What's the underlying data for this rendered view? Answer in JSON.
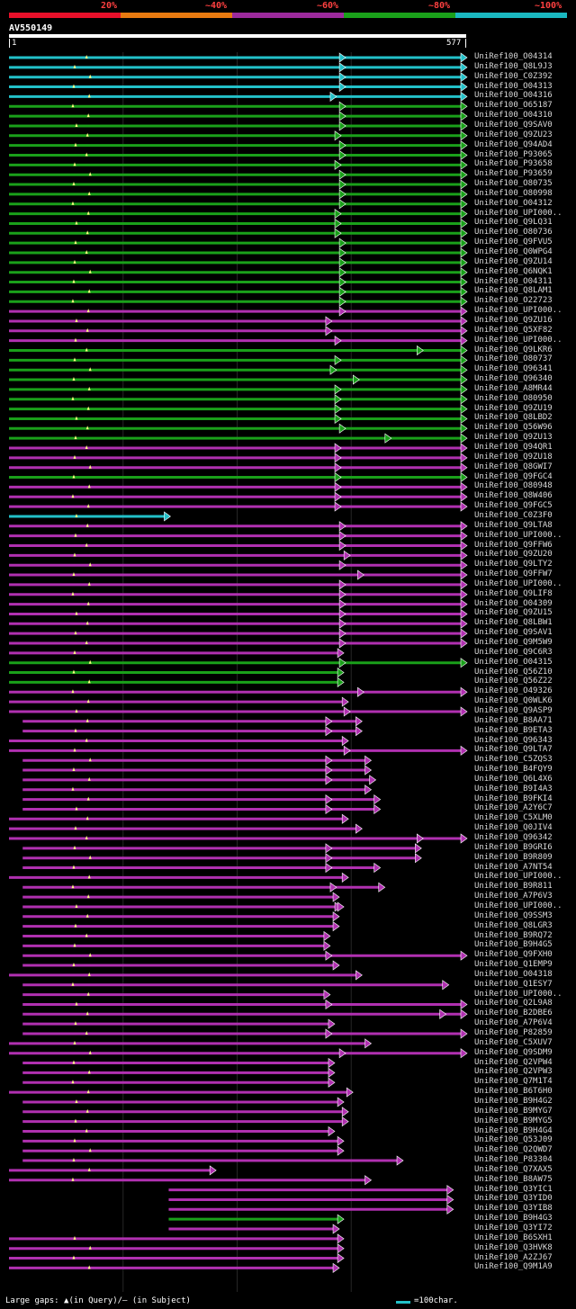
{
  "header": {
    "percent_labels": [
      "20%",
      "~40%",
      "~60%",
      "~80%",
      "~100%"
    ],
    "band_colors": [
      "#e8102a",
      "#e87a10",
      "#9c2a9c",
      "#1aa01a",
      "#1ab8c0"
    ]
  },
  "query": {
    "name": "AV550149",
    "start_label": "1",
    "end_label": "577"
  },
  "colors": {
    "cyan": "#22c0c8",
    "green": "#1aa01a",
    "magenta": "#b030b0",
    "gap": "#ffff80"
  },
  "hits": [
    {
      "label": "UniRef100_O04314",
      "c": "cyan",
      "s": 0.0,
      "e": 1.0,
      "m": 0.73
    },
    {
      "label": "UniRef100_Q8L9J3",
      "c": "cyan",
      "s": 0.0,
      "e": 1.0,
      "m": 0.73
    },
    {
      "label": "UniRef100_C0Z392",
      "c": "cyan",
      "s": 0.0,
      "e": 1.0,
      "m": 0.73
    },
    {
      "label": "UniRef100_O04313",
      "c": "cyan",
      "s": 0.0,
      "e": 1.0,
      "m": 0.73
    },
    {
      "label": "UniRef100_O04316",
      "c": "cyan",
      "s": 0.0,
      "e": 1.0,
      "m": 0.71
    },
    {
      "label": "UniRef100_O65187",
      "c": "green",
      "s": 0.0,
      "e": 1.0,
      "m": 0.73
    },
    {
      "label": "UniRef100_O04310",
      "c": "green",
      "s": 0.0,
      "e": 1.0,
      "m": 0.73
    },
    {
      "label": "UniRef100_Q9SAV0",
      "c": "green",
      "s": 0.0,
      "e": 1.0,
      "m": 0.73
    },
    {
      "label": "UniRef100_Q9ZU23",
      "c": "green",
      "s": 0.0,
      "e": 1.0,
      "m": 0.72
    },
    {
      "label": "UniRef100_Q94AD4",
      "c": "green",
      "s": 0.0,
      "e": 1.0,
      "m": 0.73
    },
    {
      "label": "UniRef100_P93065",
      "c": "green",
      "s": 0.0,
      "e": 1.0,
      "m": 0.73
    },
    {
      "label": "UniRef100_P93658",
      "c": "green",
      "s": 0.0,
      "e": 1.0,
      "m": 0.72
    },
    {
      "label": "UniRef100_P93659",
      "c": "green",
      "s": 0.0,
      "e": 1.0,
      "m": 0.73
    },
    {
      "label": "UniRef100_O80735",
      "c": "green",
      "s": 0.0,
      "e": 1.0,
      "m": 0.73
    },
    {
      "label": "UniRef100_O80998",
      "c": "green",
      "s": 0.0,
      "e": 1.0,
      "m": 0.73
    },
    {
      "label": "UniRef100_O04312",
      "c": "green",
      "s": 0.0,
      "e": 1.0,
      "m": 0.73
    },
    {
      "label": "UniRef100_UPI000..",
      "c": "green",
      "s": 0.0,
      "e": 1.0,
      "m": 0.72
    },
    {
      "label": "UniRef100_Q9LQ31",
      "c": "green",
      "s": 0.0,
      "e": 1.0,
      "m": 0.72
    },
    {
      "label": "UniRef100_O80736",
      "c": "green",
      "s": 0.0,
      "e": 1.0,
      "m": 0.72
    },
    {
      "label": "UniRef100_Q9FVU5",
      "c": "green",
      "s": 0.0,
      "e": 1.0,
      "m": 0.73
    },
    {
      "label": "UniRef100_Q0WPG4",
      "c": "green",
      "s": 0.0,
      "e": 1.0,
      "m": 0.73
    },
    {
      "label": "UniRef100_Q9ZU14",
      "c": "green",
      "s": 0.0,
      "e": 1.0,
      "m": 0.73
    },
    {
      "label": "UniRef100_Q6NQK1",
      "c": "green",
      "s": 0.0,
      "e": 1.0,
      "m": 0.73
    },
    {
      "label": "UniRef100_O04311",
      "c": "green",
      "s": 0.0,
      "e": 1.0,
      "m": 0.73
    },
    {
      "label": "UniRef100_Q8LAM1",
      "c": "green",
      "s": 0.0,
      "e": 1.0,
      "m": 0.73
    },
    {
      "label": "UniRef100_O22723",
      "c": "green",
      "s": 0.0,
      "e": 1.0,
      "m": 0.73
    },
    {
      "label": "UniRef100_UPI000..",
      "c": "magenta",
      "s": 0.0,
      "e": 1.0,
      "m": 0.73
    },
    {
      "label": "UniRef100_Q9ZU16",
      "c": "magenta",
      "s": 0.0,
      "e": 1.0,
      "m": 0.7
    },
    {
      "label": "UniRef100_Q5XF82",
      "c": "magenta",
      "s": 0.0,
      "e": 1.0,
      "m": 0.7
    },
    {
      "label": "UniRef100_UPI000..",
      "c": "magenta",
      "s": 0.0,
      "e": 1.0,
      "m": 0.72
    },
    {
      "label": "UniRef100_Q9LKR6",
      "c": "green",
      "s": 0.0,
      "e": 1.0,
      "m": 0.9
    },
    {
      "label": "UniRef100_O80737",
      "c": "green",
      "s": 0.0,
      "e": 1.0,
      "m": 0.72
    },
    {
      "label": "UniRef100_Q96341",
      "c": "green",
      "s": 0.0,
      "e": 1.0,
      "m": 0.71
    },
    {
      "label": "UniRef100_Q96340",
      "c": "green",
      "s": 0.0,
      "e": 1.0,
      "m": 0.76
    },
    {
      "label": "UniRef100_A8MR44",
      "c": "green",
      "s": 0.0,
      "e": 1.0,
      "m": 0.72
    },
    {
      "label": "UniRef100_O80950",
      "c": "green",
      "s": 0.0,
      "e": 1.0,
      "m": 0.72
    },
    {
      "label": "UniRef100_Q9ZU19",
      "c": "green",
      "s": 0.0,
      "e": 1.0,
      "m": 0.72
    },
    {
      "label": "UniRef100_Q8LBD2",
      "c": "green",
      "s": 0.0,
      "e": 1.0,
      "m": 0.72
    },
    {
      "label": "UniRef100_Q56W96",
      "c": "green",
      "s": 0.0,
      "e": 1.0,
      "m": 0.73
    },
    {
      "label": "UniRef100_Q9ZU13",
      "c": "green",
      "s": 0.0,
      "e": 1.0,
      "m": 0.83
    },
    {
      "label": "UniRef100_Q94QR1",
      "c": "magenta",
      "s": 0.0,
      "e": 1.0,
      "m": 0.72
    },
    {
      "label": "UniRef100_Q9ZU18",
      "c": "magenta",
      "s": 0.0,
      "e": 1.0,
      "m": 0.72
    },
    {
      "label": "UniRef100_Q8GWI7",
      "c": "magenta",
      "s": 0.0,
      "e": 1.0,
      "m": 0.72
    },
    {
      "label": "UniRef100_Q9FGC4",
      "c": "green",
      "s": 0.0,
      "e": 1.0,
      "m": 0.72
    },
    {
      "label": "UniRef100_O80948",
      "c": "magenta",
      "s": 0.0,
      "e": 1.0,
      "m": 0.72
    },
    {
      "label": "UniRef100_Q8W406",
      "c": "magenta",
      "s": 0.0,
      "e": 1.0,
      "m": 0.72
    },
    {
      "label": "UniRef100_Q9FGC5",
      "c": "magenta",
      "s": 0.0,
      "e": 1.0,
      "m": 0.72
    },
    {
      "label": "UniRef100_C0Z3F0",
      "c": "cyan",
      "s": 0.0,
      "e": 0.35,
      "m": -1
    },
    {
      "label": "UniRef100_Q9LTA8",
      "c": "magenta",
      "s": 0.0,
      "e": 1.0,
      "m": 0.73
    },
    {
      "label": "UniRef100_UPI000..",
      "c": "magenta",
      "s": 0.0,
      "e": 1.0,
      "m": 0.73
    },
    {
      "label": "UniRef100_Q9FFW6",
      "c": "magenta",
      "s": 0.0,
      "e": 1.0,
      "m": 0.73
    },
    {
      "label": "UniRef100_Q9ZU20",
      "c": "magenta",
      "s": 0.0,
      "e": 1.0,
      "m": 0.74
    },
    {
      "label": "UniRef100_Q9LTY2",
      "c": "magenta",
      "s": 0.0,
      "e": 1.0,
      "m": 0.73
    },
    {
      "label": "UniRef100_Q9FFW7",
      "c": "magenta",
      "s": 0.0,
      "e": 1.0,
      "m": 0.77
    },
    {
      "label": "UniRef100_UPI000..",
      "c": "magenta",
      "s": 0.0,
      "e": 1.0,
      "m": 0.73
    },
    {
      "label": "UniRef100_Q9LIF8",
      "c": "magenta",
      "s": 0.0,
      "e": 1.0,
      "m": 0.73
    },
    {
      "label": "UniRef100_O04309",
      "c": "magenta",
      "s": 0.0,
      "e": 1.0,
      "m": 0.73
    },
    {
      "label": "UniRef100_Q9ZU15",
      "c": "magenta",
      "s": 0.0,
      "e": 1.0,
      "m": 0.73
    },
    {
      "label": "UniRef100_Q8LBW1",
      "c": "magenta",
      "s": 0.0,
      "e": 1.0,
      "m": 0.73
    },
    {
      "label": "UniRef100_Q9SAV1",
      "c": "magenta",
      "s": 0.0,
      "e": 1.0,
      "m": 0.73
    },
    {
      "label": "UniRef100_Q9M5W9",
      "c": "magenta",
      "s": 0.0,
      "e": 1.0,
      "m": 0.73
    },
    {
      "label": "UniRef100_Q9C6R3",
      "c": "magenta",
      "s": 0.0,
      "e": 0.73,
      "m": -1
    },
    {
      "label": "UniRef100_O04315",
      "c": "green",
      "s": 0.0,
      "e": 1.0,
      "m": 0.73
    },
    {
      "label": "UniRef100_Q56Z10",
      "c": "green",
      "s": 0.0,
      "e": 0.73,
      "m": -1
    },
    {
      "label": "UniRef100_Q56Z22",
      "c": "green",
      "s": 0.0,
      "e": 0.73,
      "m": -1
    },
    {
      "label": "UniRef100_O49326",
      "c": "magenta",
      "s": 0.0,
      "e": 1.0,
      "m": 0.77
    },
    {
      "label": "UniRef100_Q0WLK6",
      "c": "magenta",
      "s": 0.0,
      "e": 0.74,
      "m": -1
    },
    {
      "label": "UniRef100_Q9ASP9",
      "c": "magenta",
      "s": 0.0,
      "e": 1.0,
      "m": 0.74
    },
    {
      "label": "UniRef100_B8AA71",
      "c": "magenta",
      "s": 0.03,
      "e": 0.77,
      "m": 0.7
    },
    {
      "label": "UniRef100_B9ETA3",
      "c": "magenta",
      "s": 0.03,
      "e": 0.77,
      "m": 0.7
    },
    {
      "label": "UniRef100_Q96343",
      "c": "magenta",
      "s": 0.0,
      "e": 0.74,
      "m": -1
    },
    {
      "label": "UniRef100_Q9LTA7",
      "c": "magenta",
      "s": 0.0,
      "e": 1.0,
      "m": 0.74
    },
    {
      "label": "UniRef100_C5ZQS3",
      "c": "magenta",
      "s": 0.03,
      "e": 0.79,
      "m": 0.7
    },
    {
      "label": "UniRef100_B4FQY9",
      "c": "magenta",
      "s": 0.03,
      "e": 0.79,
      "m": 0.7
    },
    {
      "label": "UniRef100_Q6L4X6",
      "c": "magenta",
      "s": 0.03,
      "e": 0.8,
      "m": 0.7
    },
    {
      "label": "UniRef100_B9I4A3",
      "c": "magenta",
      "s": 0.03,
      "e": 0.79,
      "m": -1
    },
    {
      "label": "UniRef100_B9FKI4",
      "c": "magenta",
      "s": 0.03,
      "e": 0.81,
      "m": 0.7
    },
    {
      "label": "UniRef100_A2Y6C7",
      "c": "magenta",
      "s": 0.03,
      "e": 0.81,
      "m": 0.7
    },
    {
      "label": "UniRef100_C5XLM0",
      "c": "magenta",
      "s": 0.0,
      "e": 0.74,
      "m": -1
    },
    {
      "label": "UniRef100_Q0JIV4",
      "c": "magenta",
      "s": 0.0,
      "e": 0.77,
      "m": -1
    },
    {
      "label": "UniRef100_Q96342",
      "c": "magenta",
      "s": 0.0,
      "e": 1.0,
      "m": 0.9
    },
    {
      "label": "UniRef100_B9GRI6",
      "c": "magenta",
      "s": 0.03,
      "e": 0.9,
      "m": 0.7
    },
    {
      "label": "UniRef100_B9R809",
      "c": "magenta",
      "s": 0.03,
      "e": 0.9,
      "m": 0.7
    },
    {
      "label": "UniRef100_A7NT54",
      "c": "magenta",
      "s": 0.03,
      "e": 0.81,
      "m": 0.7
    },
    {
      "label": "UniRef100_UPI000..",
      "c": "magenta",
      "s": 0.0,
      "e": 0.74,
      "m": -1
    },
    {
      "label": "UniRef100_B9R811",
      "c": "magenta",
      "s": 0.03,
      "e": 0.82,
      "m": 0.71
    },
    {
      "label": "UniRef100_A7P6V3",
      "c": "magenta",
      "s": 0.03,
      "e": 0.72,
      "m": -1
    },
    {
      "label": "UniRef100_UPI000..",
      "c": "magenta",
      "s": 0.03,
      "e": 0.73,
      "m": 0.72
    },
    {
      "label": "UniRef100_Q9SSM3",
      "c": "magenta",
      "s": 0.03,
      "e": 0.72,
      "m": -1
    },
    {
      "label": "UniRef100_Q8LGR3",
      "c": "magenta",
      "s": 0.03,
      "e": 0.72,
      "m": -1
    },
    {
      "label": "UniRef100_B9RQ72",
      "c": "magenta",
      "s": 0.03,
      "e": 0.7,
      "m": -1
    },
    {
      "label": "UniRef100_B9H4G5",
      "c": "magenta",
      "s": 0.03,
      "e": 0.7,
      "m": -1
    },
    {
      "label": "UniRef100_Q9FXH0",
      "c": "magenta",
      "s": 0.03,
      "e": 1.0,
      "m": 0.7
    },
    {
      "label": "UniRef100_Q1EMP9",
      "c": "magenta",
      "s": 0.03,
      "e": 0.72,
      "m": -1
    },
    {
      "label": "UniRef100_O04318",
      "c": "magenta",
      "s": 0.0,
      "e": 0.77,
      "m": -1
    },
    {
      "label": "UniRef100_Q1ESY7",
      "c": "magenta",
      "s": 0.03,
      "e": 0.96,
      "m": -1
    },
    {
      "label": "UniRef100_UPI000..",
      "c": "magenta",
      "s": 0.03,
      "e": 0.7,
      "m": -1
    },
    {
      "label": "UniRef100_Q2L9A8",
      "c": "magenta",
      "s": 0.03,
      "e": 1.0,
      "m": 0.7
    },
    {
      "label": "UniRef100_B2DBE6",
      "c": "magenta",
      "s": 0.03,
      "e": 1.0,
      "m": 0.95
    },
    {
      "label": "UniRef100_A7P6V4",
      "c": "magenta",
      "s": 0.03,
      "e": 0.71,
      "m": -1
    },
    {
      "label": "UniRef100_P82859",
      "c": "magenta",
      "s": 0.03,
      "e": 1.0,
      "m": 0.7
    },
    {
      "label": "UniRef100_C5XUV7",
      "c": "magenta",
      "s": 0.0,
      "e": 0.79,
      "m": -1
    },
    {
      "label": "UniRef100_Q9SDM9",
      "c": "magenta",
      "s": 0.0,
      "e": 1.0,
      "m": 0.73
    },
    {
      "label": "UniRef100_Q2VPW4",
      "c": "magenta",
      "s": 0.03,
      "e": 0.71,
      "m": -1
    },
    {
      "label": "UniRef100_Q2VPW3",
      "c": "magenta",
      "s": 0.03,
      "e": 0.71,
      "m": -1
    },
    {
      "label": "UniRef100_Q7M1T4",
      "c": "magenta",
      "s": 0.03,
      "e": 0.71,
      "m": -1
    },
    {
      "label": "UniRef100_B6T6H0",
      "c": "magenta",
      "s": 0.0,
      "e": 0.75,
      "m": -1
    },
    {
      "label": "UniRef100_B9H4G2",
      "c": "magenta",
      "s": 0.03,
      "e": 0.73,
      "m": -1
    },
    {
      "label": "UniRef100_B9MYG7",
      "c": "magenta",
      "s": 0.03,
      "e": 0.74,
      "m": -1
    },
    {
      "label": "UniRef100_B9MYG5",
      "c": "magenta",
      "s": 0.03,
      "e": 0.74,
      "m": -1
    },
    {
      "label": "UniRef100_B9H4G4",
      "c": "magenta",
      "s": 0.03,
      "e": 0.71,
      "m": -1
    },
    {
      "label": "UniRef100_Q53J09",
      "c": "magenta",
      "s": 0.03,
      "e": 0.73,
      "m": -1
    },
    {
      "label": "UniRef100_Q2QWD7",
      "c": "magenta",
      "s": 0.03,
      "e": 0.73,
      "m": -1
    },
    {
      "label": "UniRef100_P83304",
      "c": "magenta",
      "s": 0.03,
      "e": 0.86,
      "m": -1
    },
    {
      "label": "UniRef100_Q7XAX5",
      "c": "magenta",
      "s": 0.0,
      "e": 0.45,
      "m": -1
    },
    {
      "label": "UniRef100_B8AW75",
      "c": "magenta",
      "s": 0.0,
      "e": 0.79,
      "m": -1
    },
    {
      "label": "UniRef100_Q3YIC1",
      "c": "magenta",
      "s": 0.35,
      "e": 0.97,
      "m": -1
    },
    {
      "label": "UniRef100_Q3YID0",
      "c": "magenta",
      "s": 0.35,
      "e": 0.97,
      "m": -1
    },
    {
      "label": "UniRef100_Q3YIB8",
      "c": "magenta",
      "s": 0.35,
      "e": 0.97,
      "m": -1
    },
    {
      "label": "UniRef100_B9H4G3",
      "c": "green",
      "s": 0.35,
      "e": 0.73,
      "m": -1
    },
    {
      "label": "UniRef100_Q3YI72",
      "c": "magenta",
      "s": 0.35,
      "e": 0.72,
      "m": -1
    },
    {
      "label": "UniRef100_B6SXH1",
      "c": "magenta",
      "s": 0.0,
      "e": 0.73,
      "m": -1
    },
    {
      "label": "UniRef100_Q3HVK8",
      "c": "magenta",
      "s": 0.0,
      "e": 0.73,
      "m": -1
    },
    {
      "label": "UniRef100_A2ZJ67",
      "c": "magenta",
      "s": 0.0,
      "e": 0.73,
      "m": -1
    },
    {
      "label": "UniRef100_Q9M1A9",
      "c": "magenta",
      "s": 0.0,
      "e": 0.72,
      "m": -1
    }
  ],
  "footer": {
    "legend_text": "Large gaps: ▲(in Query)/– (in Subject)",
    "scale_text": "=100char."
  }
}
